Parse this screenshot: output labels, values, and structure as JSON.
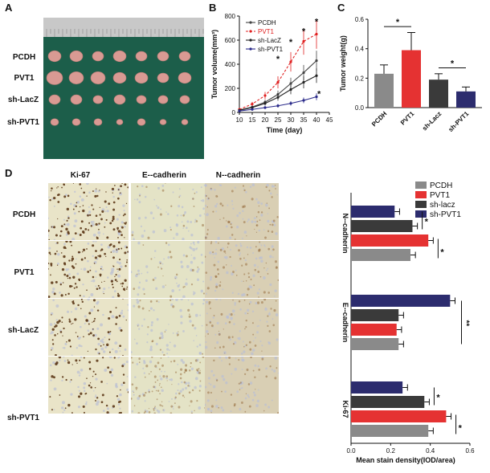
{
  "panels": {
    "A": "A",
    "B": "B",
    "C": "C",
    "D": "D"
  },
  "panelA": {
    "rows": [
      "PCDH",
      "PVT1",
      "sh-LacZ",
      "sh-PVT1"
    ],
    "tumors_per_row": 7,
    "colors": {
      "background": "#1c5e4a",
      "tumor": "#d99a93",
      "ruler": "#c8c8c8"
    }
  },
  "chart_data": [
    {
      "type": "line",
      "panel": "B",
      "xlabel": "Time (day)",
      "ylabel": "Tumor volume(mm³)",
      "x": [
        10,
        15,
        20,
        25,
        30,
        35,
        40
      ],
      "xlim": [
        10,
        45
      ],
      "ylim": [
        0,
        800
      ],
      "xticks": [
        "10",
        "15",
        "20",
        "25",
        "30",
        "35",
        "40",
        "45"
      ],
      "yticks": [
        "0",
        "200",
        "400",
        "600",
        "800"
      ],
      "series": [
        {
          "name": "PCDH",
          "color": "#444444",
          "dash": false,
          "values": [
            20,
            45,
            85,
            150,
            240,
            330,
            430
          ]
        },
        {
          "name": "PVT1",
          "color": "#e02020",
          "dash": true,
          "values": [
            25,
            70,
            140,
            250,
            420,
            590,
            650
          ]
        },
        {
          "name": "sh-LacZ",
          "color": "#222222",
          "dash": false,
          "values": [
            18,
            40,
            75,
            125,
            190,
            250,
            305
          ]
        },
        {
          "name": "sh-PVT1",
          "color": "#2a2a8a",
          "dash": false,
          "values": [
            12,
            25,
            40,
            55,
            75,
            100,
            130
          ]
        }
      ],
      "stars": [
        {
          "x": 25,
          "y": 420
        },
        {
          "x": 30,
          "y": 560
        },
        {
          "x": 35,
          "y": 650
        },
        {
          "x": 40,
          "y": 730
        },
        {
          "x": 41,
          "y": 130
        }
      ],
      "star_label": "*"
    },
    {
      "type": "bar",
      "panel": "C",
      "ylabel": "Tumor weight(g)",
      "categories": [
        "PCDH",
        "PVT1",
        "sh-Lacz",
        "sh-PVT1"
      ],
      "values": [
        0.23,
        0.39,
        0.19,
        0.11
      ],
      "errors": [
        0.06,
        0.12,
        0.04,
        0.03
      ],
      "colors": [
        "#8a8a8a",
        "#e53232",
        "#3a3a3a",
        "#2c2c6e"
      ],
      "ylim": [
        0,
        0.6
      ],
      "yticks": [
        "0.0",
        "0.2",
        "0.4",
        "0.6"
      ],
      "star_label": "*"
    },
    {
      "type": "bar",
      "panel": "D",
      "orientation": "horizontal",
      "xlabel": "Mean stain density(IOD/area)",
      "xlim": [
        0,
        0.6
      ],
      "xticks": [
        "0.0",
        "0.2",
        "0.4",
        "0.6"
      ],
      "categories": [
        "N--cadherin",
        "E--cadherin",
        "Ki-67"
      ],
      "legend": [
        {
          "name": "PCDH",
          "color": "#8a8a8a"
        },
        {
          "name": "PVT1",
          "color": "#e53232"
        },
        {
          "name": "sh-lacz",
          "color": "#3a3a3a"
        },
        {
          "name": "sh-PVT1",
          "color": "#2c2c6e"
        }
      ],
      "series_order_top_to_bottom": [
        "sh-PVT1",
        "sh-lacz",
        "PVT1",
        "PCDH"
      ],
      "values": {
        "N--cadherin": {
          "sh-PVT1": 0.22,
          "sh-lacz": 0.31,
          "PVT1": 0.39,
          "PCDH": 0.3
        },
        "E--cadherin": {
          "sh-PVT1": 0.5,
          "sh-lacz": 0.24,
          "PVT1": 0.23,
          "PCDH": 0.24
        },
        "Ki-67": {
          "sh-PVT1": 0.26,
          "sh-lacz": 0.37,
          "PVT1": 0.48,
          "PCDH": 0.39
        }
      },
      "errors": 0.025,
      "star_label": "*",
      "double_star_label": "**"
    }
  ],
  "panelD_images": {
    "columns": [
      "Ki-67",
      "E--cadherin",
      "N--cadherin"
    ],
    "rows": [
      "PCDH",
      "PVT1",
      "sh-LacZ",
      "sh-PVT1"
    ],
    "colors": {
      "bg": "#e9e4c8",
      "blue": "#b9bfd4",
      "brown": "#8c5a2b",
      "darkbrown": "#5e3a1a"
    }
  }
}
